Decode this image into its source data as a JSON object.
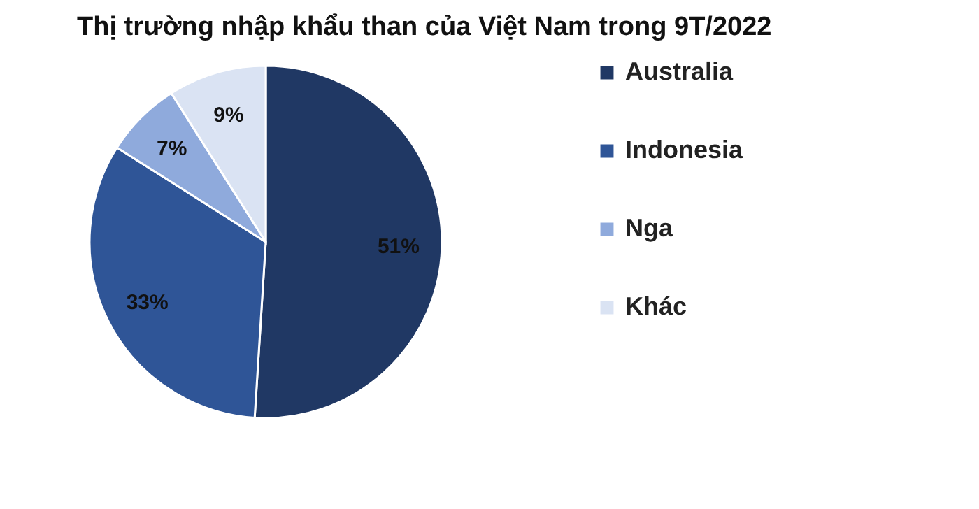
{
  "chart_data": {
    "type": "pie",
    "title": "Thị trường nhập khẩu than của Việt Nam trong 9T/2022",
    "categories": [
      "Australia",
      "Indonesia",
      "Nga",
      "Khác"
    ],
    "values": [
      51,
      33,
      7,
      9
    ],
    "colors": [
      "#203864",
      "#2f5597",
      "#8faadc",
      "#dae3f3"
    ],
    "value_labels": [
      "51%",
      "33%",
      "7%",
      "9%"
    ],
    "legend": "right"
  }
}
